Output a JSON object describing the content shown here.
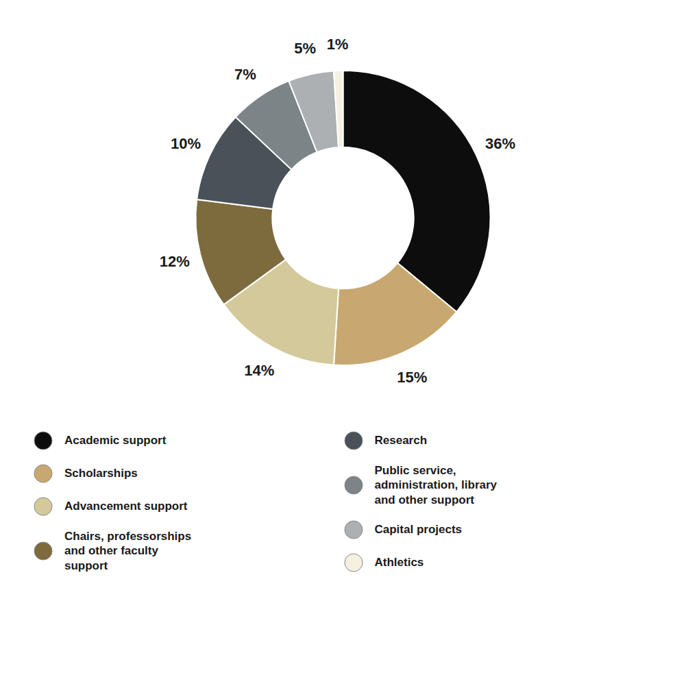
{
  "chart_data": {
    "type": "pie",
    "categories": [
      "Academic support",
      "Scholarships",
      "Advancement support",
      "Chairs, professorships\nand other faculty\nsupport",
      "Research",
      "Public service,\nadministration, library\nand other support",
      "Capital projects",
      "Athletics"
    ],
    "values": [
      36,
      15,
      14,
      12,
      10,
      7,
      5,
      1
    ],
    "value_labels": [
      "36%",
      "15%",
      "14%",
      "12%",
      "10%",
      "7%",
      "5%",
      "1%"
    ],
    "data_labels": true,
    "colors": [
      "#0d0d0d",
      "#c8a870",
      "#d4c99a",
      "#7d6b3e",
      "#4a5158",
      "#7d8487",
      "#adb0b3",
      "#f5f0e0"
    ],
    "legend": "bottom"
  }
}
